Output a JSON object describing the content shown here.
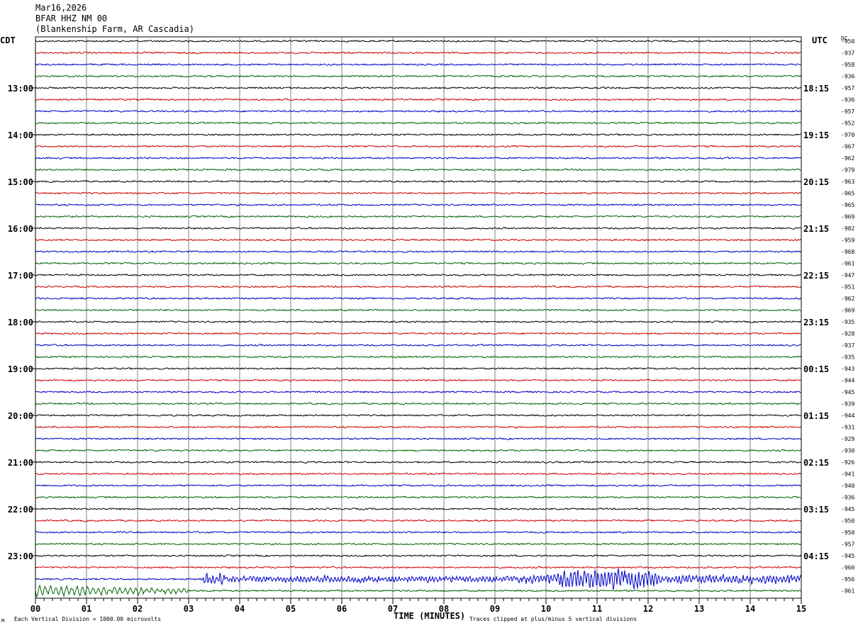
{
  "header": {
    "date": "Mar16,2026",
    "station": "BFAR HHZ NM 00",
    "location": "(Blankenship Farm, AR Cascadia)"
  },
  "labels": {
    "left_timezone": "CDT",
    "right_timezone": "UTC",
    "dc_header": "DC",
    "xlabel": "TIME (MINUTES)",
    "scale_note": "Each Vertical Division = 1000.00 microvolts",
    "clip_note": "Traces clipped at plus/minus 5 vertical divisions",
    "corner_mark": "M"
  },
  "colors": {
    "trace_cycle": [
      "#000000",
      "#d00000",
      "#0000c8",
      "#006400"
    ],
    "grid": "#808080",
    "axis": "#000000"
  },
  "chart_data": {
    "type": "line",
    "title": "BFAR HHZ NM 00",
    "xlabel": "TIME (MINUTES)",
    "x_ticks": [
      "00",
      "01",
      "02",
      "03",
      "04",
      "05",
      "06",
      "07",
      "08",
      "09",
      "10",
      "11",
      "12",
      "13",
      "14",
      "15"
    ],
    "xlim": [
      0,
      15
    ],
    "left_hour_labels": [
      "13:00",
      "14:00",
      "15:00",
      "16:00",
      "17:00",
      "18:00",
      "19:00",
      "20:00",
      "21:00",
      "22:00",
      "23:00"
    ],
    "right_hour_labels": [
      "18:15",
      "19:15",
      "20:15",
      "21:15",
      "22:15",
      "23:15",
      "00:15",
      "01:15",
      "02:15",
      "03:15",
      "04:15"
    ],
    "first_labeled_row": 4,
    "rows_per_hour": 4,
    "dc_offsets": [
      "-950",
      "-937",
      "-958",
      "-936",
      "-957",
      "-936",
      "-957",
      "-952",
      "-970",
      "-967",
      "-962",
      "-979",
      "-963",
      "-965",
      "-965",
      "-969",
      "-982",
      "-959",
      "-968",
      "-961",
      "-947",
      "-951",
      "-962",
      "-969",
      "-935",
      "-928",
      "-937",
      "-935",
      "-943",
      "-944",
      "-945",
      "-939",
      "-944",
      "-931",
      "-929",
      "-930",
      "-926",
      "-941",
      "-940",
      "-936",
      "-945",
      "-950",
      "-950",
      "-957",
      "-945",
      "-960",
      "-956",
      "-961"
    ],
    "active_segments": [
      {
        "row": 46,
        "start_min": 3.25,
        "end_min": 15.0,
        "note": "high amplitude noise, strongest 10.2-12.2 min"
      },
      {
        "row": 47,
        "start_min": 0.0,
        "end_min": 3.0,
        "note": "decaying oscillation"
      }
    ],
    "grid": true,
    "clip_divisions": 5
  }
}
